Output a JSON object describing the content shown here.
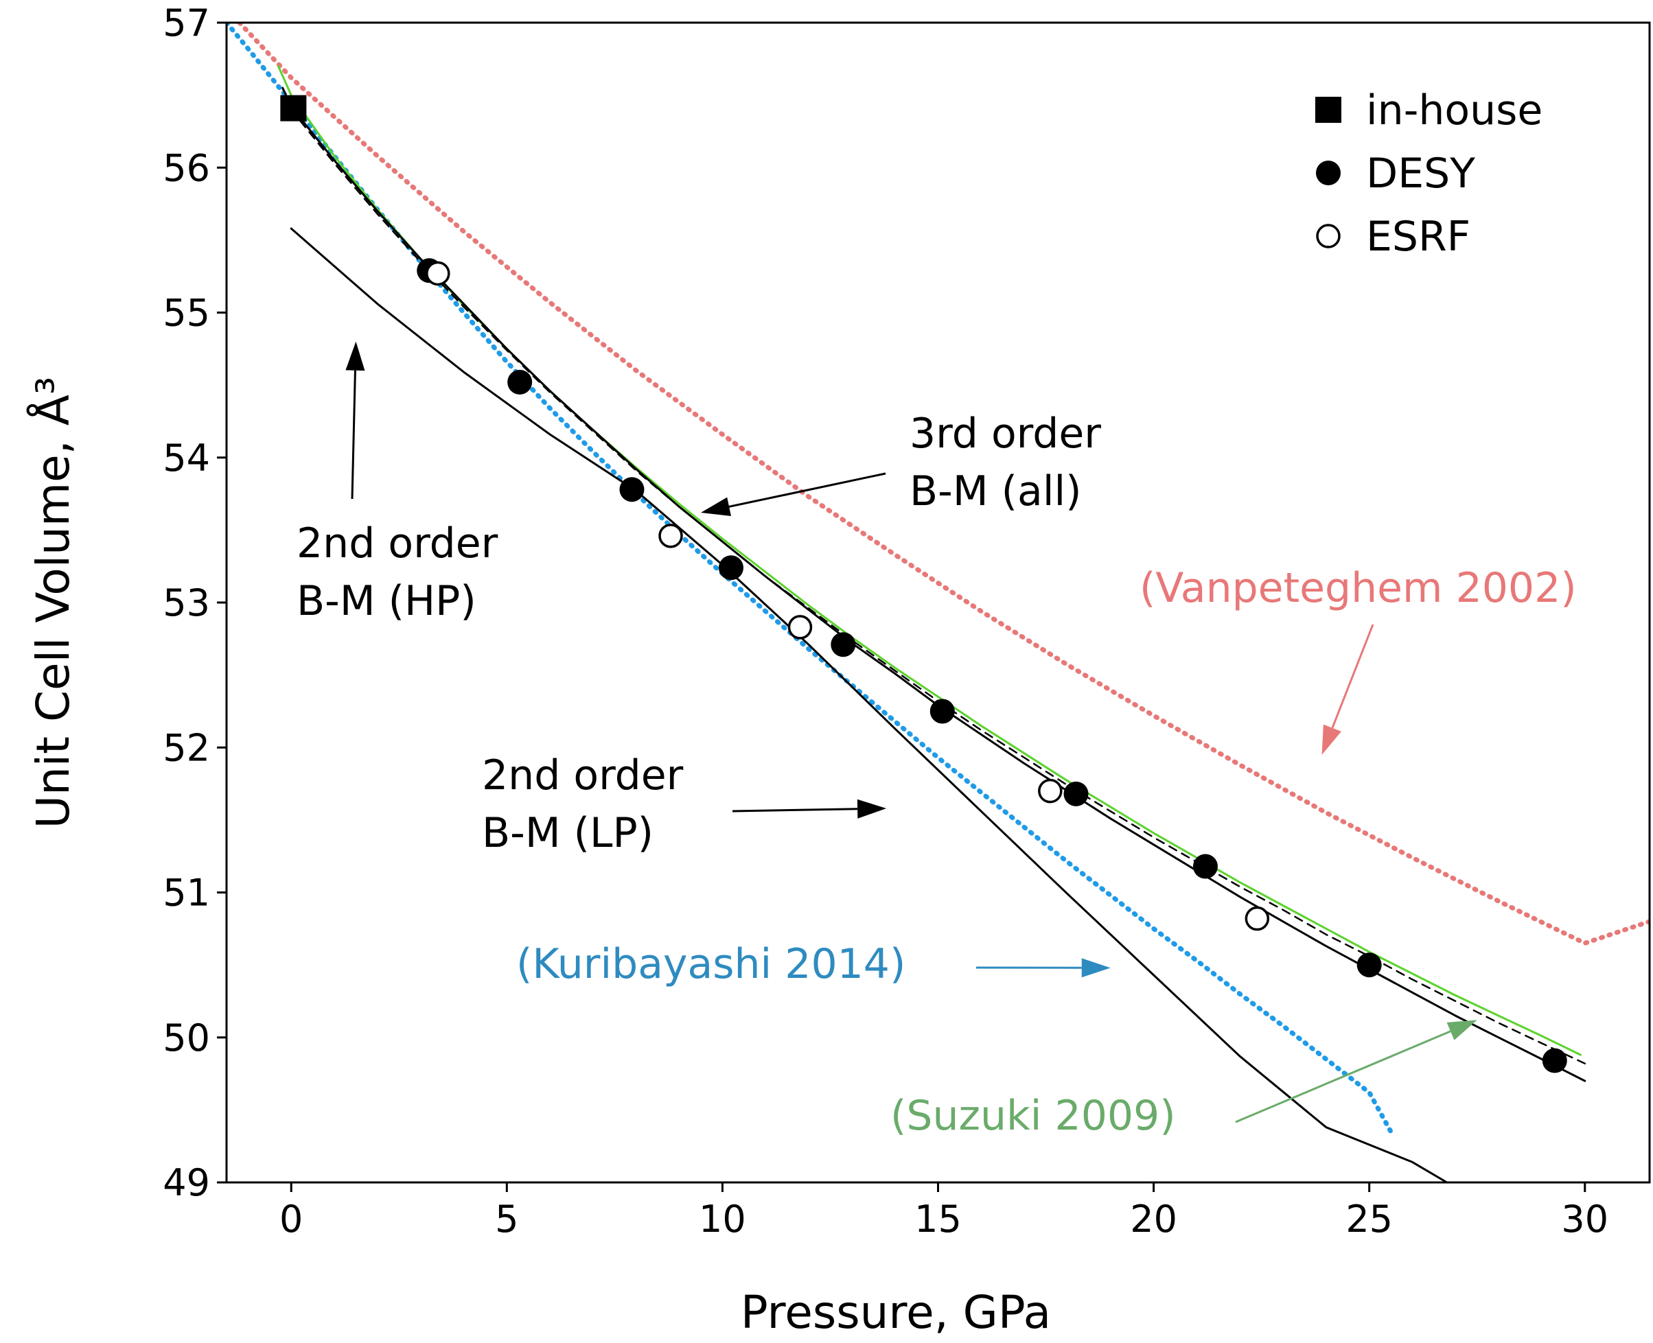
{
  "chart_data": {
    "type": "scatter",
    "title": "",
    "xlabel": "Pressure, GPa",
    "ylabel": "Unit Cell Volume, Å³",
    "xlim": [
      -1.5,
      31.5
    ],
    "ylim": [
      49,
      57
    ],
    "xticks": [
      0,
      5,
      10,
      15,
      20,
      25,
      30
    ],
    "yticks": [
      49,
      50,
      51,
      52,
      53,
      54,
      55,
      56,
      57
    ],
    "grid": false,
    "legend_position": "top-right",
    "series": [
      {
        "name": "in-house",
        "marker": "filled-square",
        "color": "#000000",
        "points": [
          [
            0.05,
            56.41
          ]
        ]
      },
      {
        "name": "DESY",
        "marker": "filled-circle",
        "color": "#000000",
        "points": [
          [
            3.2,
            55.29
          ],
          [
            5.3,
            54.52
          ],
          [
            7.9,
            53.78
          ],
          [
            10.2,
            53.24
          ],
          [
            12.8,
            52.71
          ],
          [
            15.1,
            52.25
          ],
          [
            18.2,
            51.68
          ],
          [
            21.2,
            51.18
          ],
          [
            25.0,
            50.5
          ],
          [
            29.3,
            49.84
          ]
        ]
      },
      {
        "name": "ESRF",
        "marker": "open-circle",
        "color": "#000000",
        "points": [
          [
            3.4,
            55.27
          ],
          [
            8.8,
            53.46
          ],
          [
            11.8,
            52.83
          ],
          [
            17.6,
            51.7
          ],
          [
            22.4,
            50.82
          ]
        ]
      }
    ],
    "curves": [
      {
        "name": "3rd order B-M (all)",
        "style": "solid",
        "color": "#000000",
        "points": [
          [
            -0.2,
            56.55
          ],
          [
            0,
            56.42
          ],
          [
            1,
            56.05
          ],
          [
            2,
            55.7
          ],
          [
            3,
            55.37
          ],
          [
            4,
            55.06
          ],
          [
            5,
            54.75
          ],
          [
            6,
            54.46
          ],
          [
            7,
            54.19
          ],
          [
            8,
            53.92
          ],
          [
            9,
            53.66
          ],
          [
            10,
            53.42
          ],
          [
            11,
            53.18
          ],
          [
            12,
            52.95
          ],
          [
            13,
            52.72
          ],
          [
            14,
            52.51
          ],
          [
            15,
            52.29
          ],
          [
            16,
            52.09
          ],
          [
            17,
            51.89
          ],
          [
            18,
            51.7
          ],
          [
            19,
            51.51
          ],
          [
            20,
            51.33
          ],
          [
            21,
            51.15
          ],
          [
            22,
            50.97
          ],
          [
            23,
            50.8
          ],
          [
            24,
            50.63
          ],
          [
            25,
            50.47
          ],
          [
            26,
            50.31
          ],
          [
            27,
            50.15
          ],
          [
            28,
            50.0
          ],
          [
            29,
            49.85
          ],
          [
            30,
            49.7
          ]
        ]
      },
      {
        "name": "3rd order B-M (all, dashed)",
        "style": "dashed",
        "color": "#000000",
        "points": [
          [
            0,
            56.4
          ],
          [
            1,
            56.03
          ],
          [
            2,
            55.68
          ],
          [
            3,
            55.35
          ],
          [
            4,
            55.04
          ],
          [
            5,
            54.74
          ],
          [
            6,
            54.45
          ],
          [
            7,
            54.18
          ],
          [
            8,
            53.91
          ],
          [
            9,
            53.66
          ],
          [
            10,
            53.42
          ],
          [
            11,
            53.18
          ],
          [
            12,
            52.96
          ],
          [
            13,
            52.74
          ],
          [
            14,
            52.53
          ],
          [
            15,
            52.32
          ],
          [
            16,
            52.12
          ],
          [
            17,
            51.93
          ],
          [
            18,
            51.74
          ],
          [
            19,
            51.56
          ],
          [
            20,
            51.38
          ],
          [
            21,
            51.21
          ],
          [
            22,
            51.04
          ],
          [
            23,
            50.88
          ],
          [
            24,
            50.71
          ],
          [
            25,
            50.56
          ],
          [
            26,
            50.4
          ],
          [
            27,
            50.25
          ],
          [
            28,
            50.1
          ],
          [
            29,
            49.96
          ],
          [
            30,
            49.82
          ]
        ]
      },
      {
        "name": "Suzuki 2009",
        "style": "solid",
        "color": "#5cd22d",
        "points": [
          [
            -0.3,
            56.7
          ],
          [
            0,
            56.5
          ],
          [
            1,
            56.08
          ],
          [
            2,
            55.71
          ],
          [
            3,
            55.37
          ],
          [
            4,
            55.05
          ],
          [
            5,
            54.75
          ],
          [
            6,
            54.46
          ],
          [
            7,
            54.19
          ],
          [
            8,
            53.93
          ],
          [
            9,
            53.68
          ],
          [
            10,
            53.44
          ],
          [
            11,
            53.21
          ],
          [
            12,
            52.98
          ],
          [
            13,
            52.76
          ],
          [
            14,
            52.55
          ],
          [
            15,
            52.35
          ],
          [
            16,
            52.15
          ],
          [
            17,
            51.96
          ],
          [
            18,
            51.77
          ],
          [
            19,
            51.59
          ],
          [
            20,
            51.41
          ],
          [
            21,
            51.24
          ],
          [
            22,
            51.07
          ],
          [
            23,
            50.91
          ],
          [
            24,
            50.75
          ],
          [
            25,
            50.59
          ],
          [
            26,
            50.44
          ],
          [
            27,
            50.29
          ],
          [
            28,
            50.15
          ],
          [
            29,
            50.01
          ],
          [
            29.9,
            49.88
          ]
        ]
      },
      {
        "name": "Kuribayashi 2014",
        "style": "dotted",
        "color": "#1f9be8",
        "points": [
          [
            -1.5,
            57.0
          ],
          [
            -1,
            56.82
          ],
          [
            0,
            56.45
          ],
          [
            1,
            56.08
          ],
          [
            2,
            55.71
          ],
          [
            3,
            55.35
          ],
          [
            4,
            55.0
          ],
          [
            5,
            54.66
          ],
          [
            6,
            54.34
          ],
          [
            7,
            54.04
          ],
          [
            8,
            53.75
          ],
          [
            9,
            53.47
          ],
          [
            10,
            53.2
          ],
          [
            11,
            52.94
          ],
          [
            12,
            52.68
          ],
          [
            13,
            52.43
          ],
          [
            14,
            52.18
          ],
          [
            15,
            51.93
          ],
          [
            16,
            51.69
          ],
          [
            17,
            51.45
          ],
          [
            18,
            51.21
          ],
          [
            19,
            50.98
          ],
          [
            20,
            50.75
          ],
          [
            21,
            50.53
          ],
          [
            22,
            50.3
          ],
          [
            23,
            50.08
          ],
          [
            24,
            49.85
          ],
          [
            25,
            49.62
          ],
          [
            25.5,
            49.35
          ]
        ]
      },
      {
        "name": "Vanpeteghem 2002",
        "style": "dotted",
        "color": "#e87878",
        "points": [
          [
            -1.2,
            57.0
          ],
          [
            0,
            56.62
          ],
          [
            2,
            56.08
          ],
          [
            4,
            55.56
          ],
          [
            6,
            55.07
          ],
          [
            8,
            54.6
          ],
          [
            10,
            54.16
          ],
          [
            12,
            53.73
          ],
          [
            14,
            53.33
          ],
          [
            16,
            52.94
          ],
          [
            18,
            52.57
          ],
          [
            20,
            52.22
          ],
          [
            22,
            51.88
          ],
          [
            24,
            51.55
          ],
          [
            26,
            51.24
          ],
          [
            28,
            50.94
          ],
          [
            30,
            50.65
          ],
          [
            31.5,
            50.8
          ]
        ]
      },
      {
        "name": "2nd order B-M (LP)",
        "style": "solid",
        "color": "#000000",
        "points": [
          [
            0,
            55.58
          ],
          [
            2,
            55.06
          ],
          [
            4,
            54.59
          ],
          [
            6,
            54.16
          ],
          [
            8,
            53.77
          ],
          [
            10,
            53.26
          ],
          [
            12,
            52.71
          ],
          [
            14,
            52.13
          ],
          [
            16,
            51.56
          ],
          [
            18,
            50.99
          ],
          [
            20,
            50.43
          ],
          [
            22,
            49.87
          ],
          [
            24,
            49.38
          ],
          [
            26,
            49.14
          ],
          [
            26.8,
            49.0
          ]
        ]
      }
    ],
    "legend": [
      "in-house",
      "DESY",
      "ESRF"
    ],
    "annotations": [
      {
        "text_lines": [
          "3rd order",
          "B-M (all)"
        ],
        "color": "#000000",
        "arrow_to": [
          9.5,
          53.62
        ]
      },
      {
        "text_lines": [
          "2nd order",
          "B-M (HP)"
        ],
        "color": "#000000",
        "arrow_to": [
          1.5,
          54.8
        ]
      },
      {
        "text_lines": [
          "2nd order",
          "B-M (LP)"
        ],
        "color": "#000000",
        "arrow_to": [
          13.8,
          51.58
        ]
      },
      {
        "text_lines": [
          "(Vanpeteghem 2002)"
        ],
        "color": "#e87878",
        "arrow_to": [
          23.9,
          51.95
        ]
      },
      {
        "text_lines": [
          "(Kuribayashi 2014)"
        ],
        "color": "#2e8bc0",
        "arrow_to": [
          19.0,
          50.48
        ]
      },
      {
        "text_lines": [
          "(Suzuki 2009)"
        ],
        "color": "#6aab6a",
        "arrow_to": [
          27.5,
          50.12
        ]
      }
    ]
  }
}
